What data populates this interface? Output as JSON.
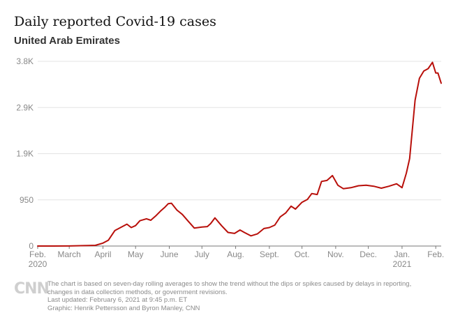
{
  "header": {
    "title": "Daily reported Covid-19 cases",
    "subtitle": "United Arab Emirates"
  },
  "chart_data": {
    "type": "line",
    "title": "Daily reported Covid-19 cases",
    "subtitle": "United Arab Emirates",
    "xlabel": "",
    "ylabel": "",
    "ylim": [
      0,
      3800
    ],
    "yticks": [
      {
        "value": 0,
        "label": "0"
      },
      {
        "value": 950,
        "label": "950"
      },
      {
        "value": 1900,
        "label": "1.9K"
      },
      {
        "value": 2850,
        "label": "2.9K"
      },
      {
        "value": 3800,
        "label": "3.8K"
      }
    ],
    "xrange": [
      "2020-02-01",
      "2021-02-06"
    ],
    "xticks": [
      {
        "date": "2020-02-01",
        "label": "Feb.",
        "sublabel": "2020"
      },
      {
        "date": "2020-03-01",
        "label": "March",
        "sublabel": ""
      },
      {
        "date": "2020-04-01",
        "label": "April",
        "sublabel": ""
      },
      {
        "date": "2020-05-01",
        "label": "May",
        "sublabel": ""
      },
      {
        "date": "2020-06-01",
        "label": "June",
        "sublabel": ""
      },
      {
        "date": "2020-07-01",
        "label": "July",
        "sublabel": ""
      },
      {
        "date": "2020-08-01",
        "label": "Aug.",
        "sublabel": ""
      },
      {
        "date": "2020-09-01",
        "label": "Sept.",
        "sublabel": ""
      },
      {
        "date": "2020-10-01",
        "label": "Oct.",
        "sublabel": ""
      },
      {
        "date": "2020-11-01",
        "label": "Nov.",
        "sublabel": ""
      },
      {
        "date": "2020-12-01",
        "label": "Dec.",
        "sublabel": ""
      },
      {
        "date": "2021-01-01",
        "label": "Jan.",
        "sublabel": "2021"
      },
      {
        "date": "2021-02-01",
        "label": "Feb.",
        "sublabel": ""
      }
    ],
    "grid": true,
    "line_color": "#b80f0a",
    "series": [
      {
        "name": "",
        "x": [
          "2020-02-01",
          "2020-02-15",
          "2020-03-01",
          "2020-03-15",
          "2020-03-25",
          "2020-04-01",
          "2020-04-06",
          "2020-04-12",
          "2020-04-18",
          "2020-04-23",
          "2020-04-27",
          "2020-05-01",
          "2020-05-05",
          "2020-05-11",
          "2020-05-15",
          "2020-05-20",
          "2020-05-24",
          "2020-05-28",
          "2020-05-31",
          "2020-06-03",
          "2020-06-08",
          "2020-06-13",
          "2020-06-18",
          "2020-06-24",
          "2020-07-01",
          "2020-07-06",
          "2020-07-09",
          "2020-07-13",
          "2020-07-19",
          "2020-07-25",
          "2020-07-31",
          "2020-08-05",
          "2020-08-09",
          "2020-08-15",
          "2020-08-21",
          "2020-08-27",
          "2020-09-01",
          "2020-09-06",
          "2020-09-11",
          "2020-09-16",
          "2020-09-21",
          "2020-09-25",
          "2020-10-01",
          "2020-10-06",
          "2020-10-10",
          "2020-10-15",
          "2020-10-19",
          "2020-10-24",
          "2020-10-29",
          "2020-11-03",
          "2020-11-08",
          "2020-11-15",
          "2020-11-22",
          "2020-11-29",
          "2020-12-06",
          "2020-12-13",
          "2020-12-20",
          "2020-12-27",
          "2021-01-01",
          "2021-01-05",
          "2021-01-08",
          "2021-01-13",
          "2021-01-17",
          "2021-01-21",
          "2021-01-25",
          "2021-01-29",
          "2021-02-01",
          "2021-02-03",
          "2021-02-06"
        ],
        "y": [
          0,
          0,
          2,
          8,
          15,
          60,
          120,
          320,
          390,
          450,
          380,
          420,
          520,
          560,
          530,
          630,
          720,
          800,
          870,
          880,
          740,
          650,
          520,
          370,
          390,
          400,
          460,
          580,
          420,
          280,
          260,
          330,
          280,
          210,
          250,
          360,
          380,
          430,
          600,
          680,
          820,
          760,
          900,
          960,
          1080,
          1060,
          1330,
          1350,
          1450,
          1250,
          1180,
          1200,
          1240,
          1250,
          1230,
          1190,
          1230,
          1280,
          1200,
          1500,
          1800,
          3000,
          3450,
          3600,
          3650,
          3780,
          3560,
          3560,
          3350
        ]
      }
    ]
  },
  "footer": {
    "logo": "CNN",
    "notes": [
      "The chart is based on seven-day rolling averages to show the trend without the dips or spikes caused by delays in reporting,",
      "changes in data collection methods, or government revisions.",
      "Last updated: February 6, 2021 at 9:45 p.m. ET",
      "Graphic: Henrik Pettersson and Byron Manley, CNN"
    ]
  }
}
